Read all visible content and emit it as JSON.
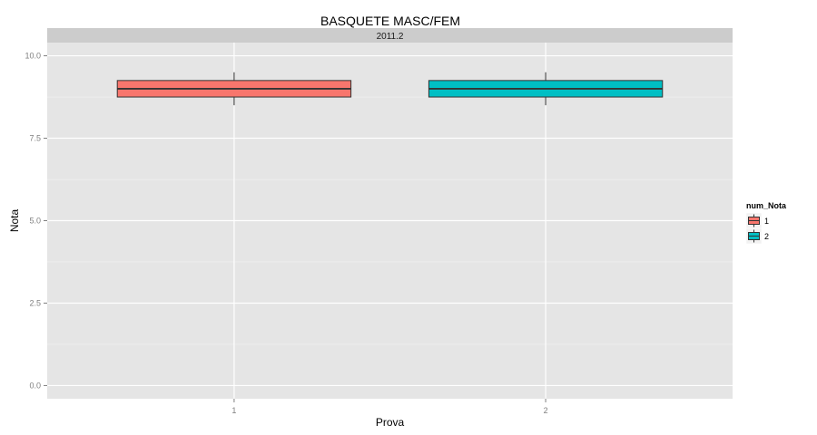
{
  "chart_data": {
    "type": "boxplot",
    "title": "BASQUETE   MASC/FEM",
    "facet": "2011.2",
    "xlabel": "Prova",
    "ylabel": "Nota",
    "categories": [
      "1",
      "2"
    ],
    "ylim": [
      -0.4,
      10.4
    ],
    "yticks": [
      0.0,
      2.5,
      5.0,
      7.5,
      10.0
    ],
    "ytick_labels": [
      "0.0",
      "2.5",
      "5.0",
      "7.5",
      "10.0"
    ],
    "grid": true,
    "legend": {
      "title": "num_Nota",
      "position": "right",
      "entries": [
        "1",
        "2"
      ]
    },
    "series": [
      {
        "name": "1",
        "category": "1",
        "color": "#F8766D",
        "min": 8.5,
        "q1": 8.75,
        "median": 9.0,
        "q3": 9.25,
        "max": 9.5
      },
      {
        "name": "2",
        "category": "2",
        "color": "#00BFC4",
        "min": 8.5,
        "q1": 8.75,
        "median": 9.0,
        "q3": 9.25,
        "max": 9.5
      }
    ]
  }
}
